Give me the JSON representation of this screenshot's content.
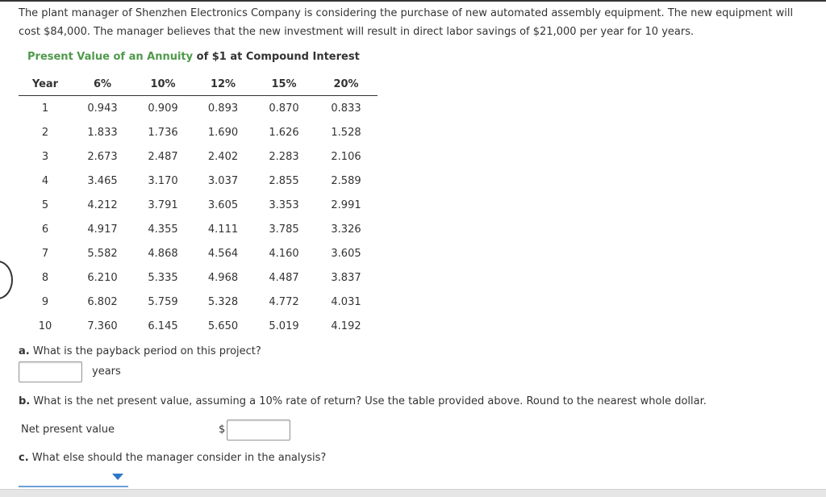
{
  "problem": {
    "text": "The plant manager of Shenzhen Electronics Company is considering the purchase of new automated assembly equipment. The new equipment will cost $84,000. The manager believes that the new investment will result in direct labor savings of $21,000 per year for 10 years."
  },
  "table": {
    "title_link": "Present Value of an Annuity",
    "title_rest": " of $1 at Compound Interest",
    "headers": [
      "Year",
      "6%",
      "10%",
      "12%",
      "15%",
      "20%"
    ],
    "rows": [
      [
        "1",
        "0.943",
        "0.909",
        "0.893",
        "0.870",
        "0.833"
      ],
      [
        "2",
        "1.833",
        "1.736",
        "1.690",
        "1.626",
        "1.528"
      ],
      [
        "3",
        "2.673",
        "2.487",
        "2.402",
        "2.283",
        "2.106"
      ],
      [
        "4",
        "3.465",
        "3.170",
        "3.037",
        "2.855",
        "2.589"
      ],
      [
        "5",
        "4.212",
        "3.791",
        "3.605",
        "3.353",
        "2.991"
      ],
      [
        "6",
        "4.917",
        "4.355",
        "4.111",
        "3.785",
        "3.326"
      ],
      [
        "7",
        "5.582",
        "4.868",
        "4.564",
        "4.160",
        "3.605"
      ],
      [
        "8",
        "6.210",
        "5.335",
        "4.968",
        "4.487",
        "3.837"
      ],
      [
        "9",
        "6.802",
        "5.759",
        "5.328",
        "4.772",
        "4.031"
      ],
      [
        "10",
        "7.360",
        "6.145",
        "5.650",
        "5.019",
        "4.192"
      ]
    ]
  },
  "questions": {
    "a": {
      "letter": "a.",
      "text": " What is the payback period on this project?",
      "input_value": "",
      "unit": "years"
    },
    "b": {
      "letter": "b.",
      "text": " What is the net present value, assuming a 10% rate of return? Use the table provided above. Round to the nearest whole dollar.",
      "label": "Net present value",
      "currency": "$",
      "input_value": ""
    },
    "c": {
      "letter": "c.",
      "text": " What else should the manager consider in the analysis?",
      "selected": ""
    }
  },
  "colors": {
    "accent_green": "#4f9a4b",
    "dropdown_blue": "#2f78c4"
  }
}
